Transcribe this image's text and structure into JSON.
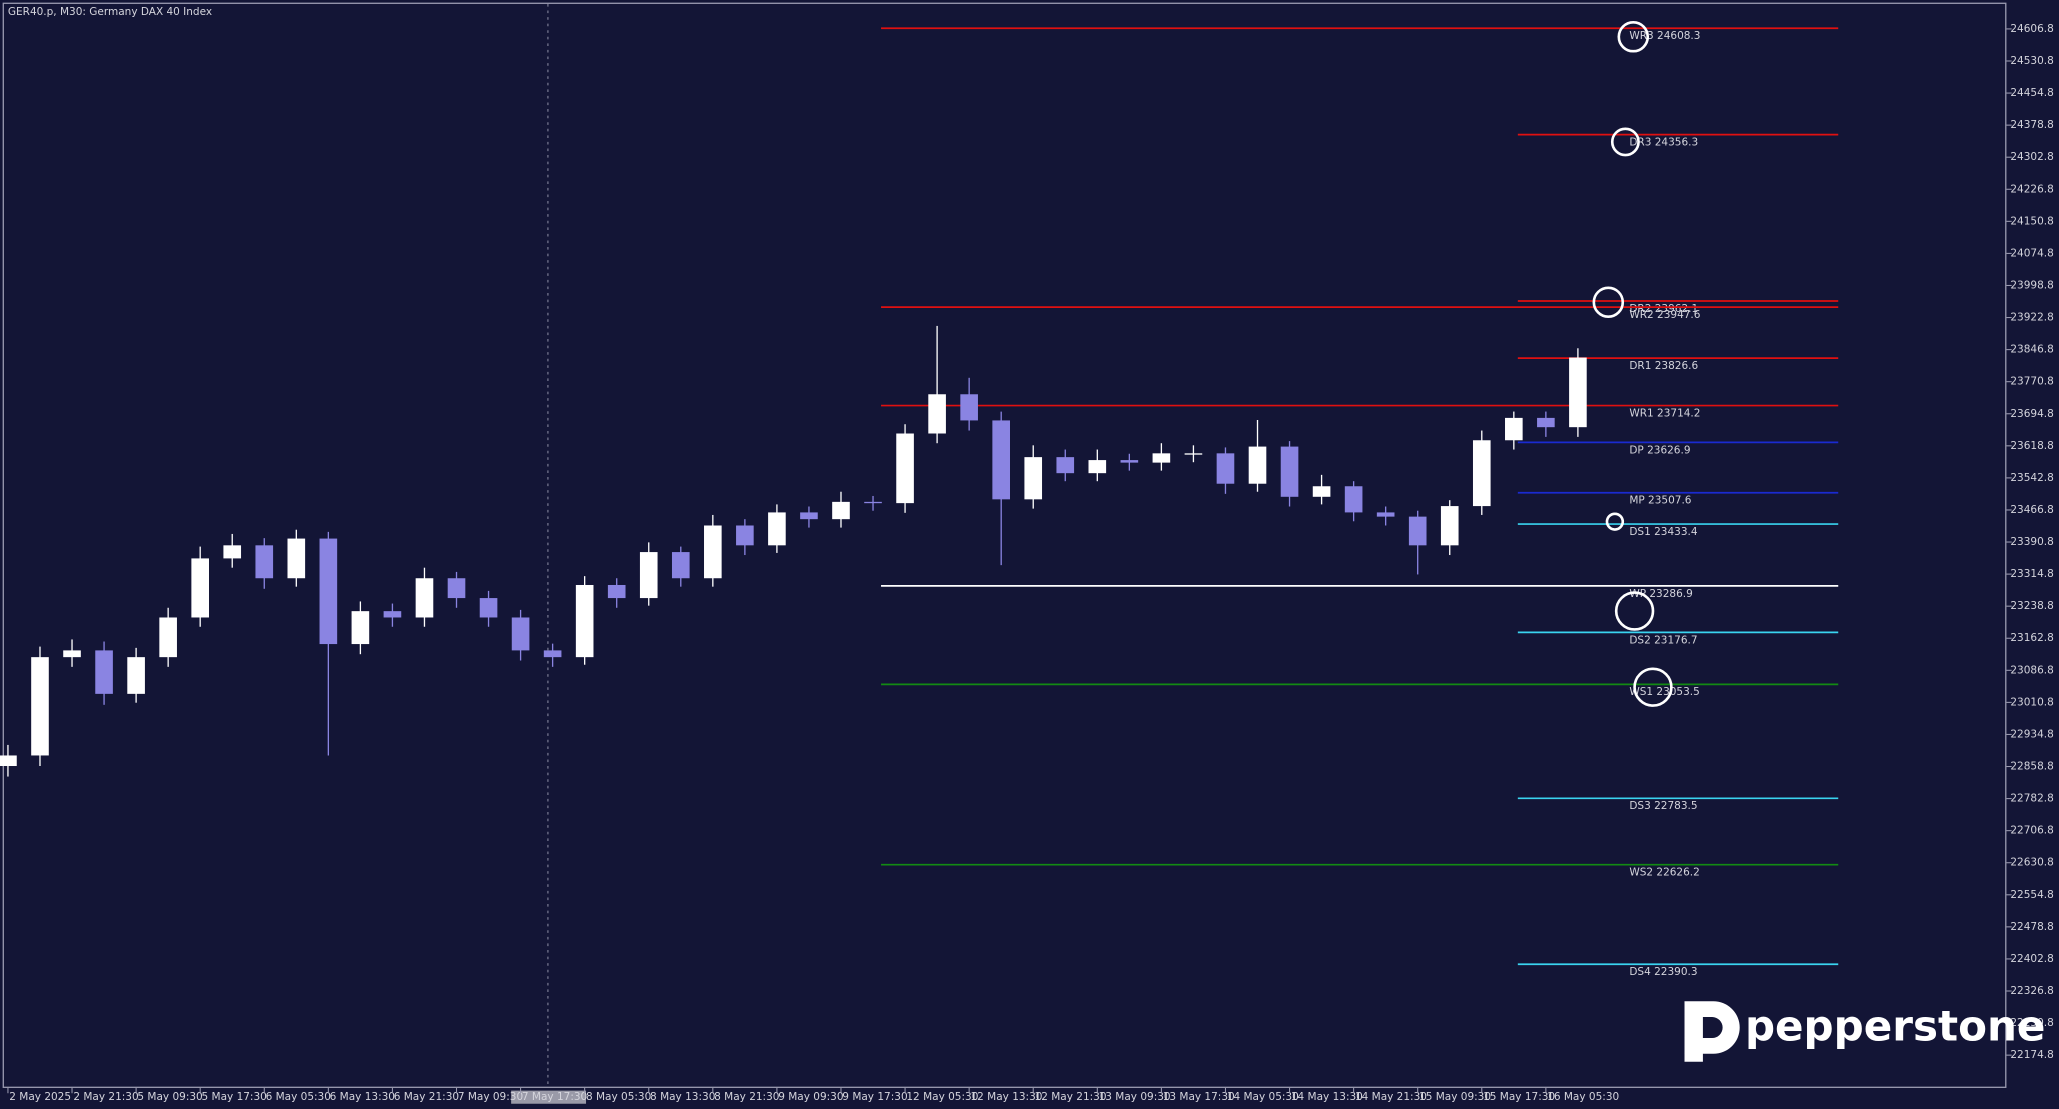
{
  "chart_data": {
    "type": "candlestick",
    "title": "GER40.p, M30:  Germany DAX 40 Index",
    "brand": "pepperstone",
    "xlim": [
      -1,
      499
    ],
    "ylim": [
      22097,
      24666
    ],
    "xticks": [
      {
        "value": 0,
        "label": "2 May 2025"
      },
      {
        "value": 16,
        "label": "2 May 21:30"
      },
      {
        "value": 32,
        "label": "5 May 09:30"
      },
      {
        "value": 48,
        "label": "5 May 17:30"
      },
      {
        "value": 64,
        "label": "6 May 05:30"
      },
      {
        "value": 80,
        "label": "6 May 13:30"
      },
      {
        "value": 96,
        "label": "6 May 21:30"
      },
      {
        "value": 112,
        "label": "7 May 09:30"
      },
      {
        "value": 128,
        "label": "7 May 17:30"
      },
      {
        "value": 144,
        "label": "8 May 05:30"
      },
      {
        "value": 160,
        "label": "8 May 13:30"
      },
      {
        "value": 176,
        "label": "8 May 21:30"
      },
      {
        "value": 192,
        "label": "9 May 09:30"
      },
      {
        "value": 208,
        "label": "9 May 17:30"
      },
      {
        "value": 224,
        "label": "12 May 05:30"
      },
      {
        "value": 240,
        "label": "12 May 13:30"
      },
      {
        "value": 256,
        "label": "12 May 21:30"
      },
      {
        "value": 272,
        "label": "13 May 09:30"
      },
      {
        "value": 288,
        "label": "13 May 17:30"
      },
      {
        "value": 304,
        "label": "14 May 05:30"
      },
      {
        "value": 320,
        "label": "14 May 13:30"
      },
      {
        "value": 336,
        "label": "14 May 21:30"
      },
      {
        "value": 352,
        "label": "15 May 09:30"
      },
      {
        "value": 368,
        "label": "15 May 17:30"
      },
      {
        "value": 384,
        "label": "16 May 05:30"
      }
    ],
    "yticks": [
      24606.8,
      24530.8,
      24454.8,
      24378.8,
      24302.8,
      24226.8,
      24150.8,
      24074.8,
      23998.8,
      23922.8,
      23846.8,
      23770.8,
      23694.8,
      23618.8,
      23542.8,
      23466.8,
      23390.8,
      23314.8,
      23238.8,
      23162.8,
      23086.8,
      23010.8,
      22934.8,
      22858.8,
      22782.8,
      22706.8,
      22630.8,
      22554.8,
      22478.8,
      22402.8,
      22326.8,
      22250.8,
      22174.8
    ],
    "up_color": "#ffffff",
    "down_color": "#8a84e2",
    "x": [
      0,
      8,
      16,
      24,
      32,
      40,
      48,
      56,
      64,
      72,
      80,
      88,
      96,
      104,
      112,
      120,
      128,
      136,
      144,
      152,
      160,
      168,
      176,
      184,
      192,
      200,
      208,
      216,
      224,
      232,
      240,
      248,
      256,
      264,
      272,
      280,
      288,
      296,
      304,
      312,
      320,
      328,
      336,
      344,
      352,
      360,
      368,
      376,
      384,
      392
    ],
    "open": [
      22860,
      22885,
      23118,
      23134,
      23031,
      23118,
      23212,
      23352,
      23383,
      23305,
      23399,
      23149,
      23227,
      23212,
      23305,
      23258,
      23212,
      23134,
      23118,
      23289,
      23258,
      23367,
      23305,
      23430,
      23383,
      23461,
      23445,
      23486,
      23483,
      23648,
      23741,
      23679,
      23492,
      23592,
      23554,
      23585,
      23579,
      23601,
      23601,
      23529,
      23617,
      23498,
      23523,
      23461,
      23451,
      23383,
      23476,
      23632,
      23685,
      23663
    ],
    "high": [
      22910,
      23143,
      23160,
      23155,
      23140,
      23235,
      23380,
      23410,
      23400,
      23420,
      23415,
      23250,
      23245,
      23330,
      23320,
      23275,
      23230,
      23150,
      23310,
      23305,
      23390,
      23380,
      23455,
      23445,
      23480,
      23475,
      23510,
      23500,
      23670,
      23903,
      23780,
      23700,
      23620,
      23610,
      23610,
      23600,
      23625,
      23620,
      23615,
      23680,
      23630,
      23550,
      23535,
      23475,
      23465,
      23490,
      23655,
      23700,
      23700,
      23850
    ],
    "low": [
      22835,
      22860,
      23095,
      23005,
      23010,
      23095,
      23190,
      23330,
      23280,
      23285,
      22885,
      23125,
      23190,
      23190,
      23235,
      23190,
      23110,
      23095,
      23100,
      23235,
      23240,
      23285,
      23285,
      23360,
      23365,
      23425,
      23425,
      23465,
      23460,
      23625,
      23655,
      23336,
      23470,
      23535,
      23535,
      23560,
      23560,
      23580,
      23505,
      23510,
      23475,
      23480,
      23440,
      23430,
      23314,
      23360,
      23455,
      23610,
      23640,
      23640
    ],
    "close": [
      22885,
      23118,
      23134,
      23031,
      23118,
      23212,
      23352,
      23383,
      23305,
      23399,
      23149,
      23227,
      23212,
      23305,
      23258,
      23212,
      23134,
      23118,
      23289,
      23258,
      23367,
      23305,
      23430,
      23383,
      23461,
      23445,
      23486,
      23483,
      23648,
      23741,
      23679,
      23492,
      23592,
      23554,
      23585,
      23579,
      23601,
      23601,
      23529,
      23617,
      23498,
      23523,
      23461,
      23451,
      23383,
      23476,
      23632,
      23685,
      23663,
      23828
    ],
    "levels": [
      {
        "label": "WR3 24608.3",
        "value": 24608.3,
        "from": 218,
        "to": 457,
        "color": "#e01010"
      },
      {
        "label": "DR3 24356.3",
        "value": 24356.3,
        "from": 377,
        "to": 457,
        "color": "#e01010"
      },
      {
        "label": "DR2 23962.1",
        "value": 23962.1,
        "from": 377,
        "to": 457,
        "color": "#e01010"
      },
      {
        "label": "WR2 23947.6",
        "value": 23947.6,
        "from": 218,
        "to": 457,
        "color": "#e01010"
      },
      {
        "label": "DR1 23826.6",
        "value": 23826.6,
        "from": 377,
        "to": 457,
        "color": "#e01010"
      },
      {
        "label": "WR1 23714.2",
        "value": 23714.2,
        "from": 218,
        "to": 457,
        "color": "#e01010"
      },
      {
        "label": "DP 23626.9",
        "value": 23626.9,
        "from": 377,
        "to": 457,
        "color": "#1a2ad0"
      },
      {
        "label": "MP 23507.6",
        "value": 23507.6,
        "from": 377,
        "to": 457,
        "color": "#1a2ad0"
      },
      {
        "label": "DS1 23433.4",
        "value": 23433.4,
        "from": 377,
        "to": 457,
        "color": "#3ad4f0"
      },
      {
        "label": "WP 23286.9",
        "value": 23286.9,
        "from": 218,
        "to": 457,
        "color": "#ffffff"
      },
      {
        "label": "DS2 23176.7",
        "value": 23176.7,
        "from": 377,
        "to": 457,
        "color": "#3ad4f0"
      },
      {
        "label": "WS1 23053.5",
        "value": 23053.5,
        "from": 218,
        "to": 457,
        "color": "#138a13"
      },
      {
        "label": "DS3 22783.5",
        "value": 22783.5,
        "from": 377,
        "to": 457,
        "color": "#3ad4f0"
      },
      {
        "label": "WS2 22626.2",
        "value": 22626.2,
        "from": 218,
        "to": 457,
        "color": "#138a13"
      },
      {
        "label": "DS4 22390.3",
        "value": 22390.3,
        "from": 377,
        "to": 457,
        "color": "#3ad4f0"
      }
    ]
  }
}
